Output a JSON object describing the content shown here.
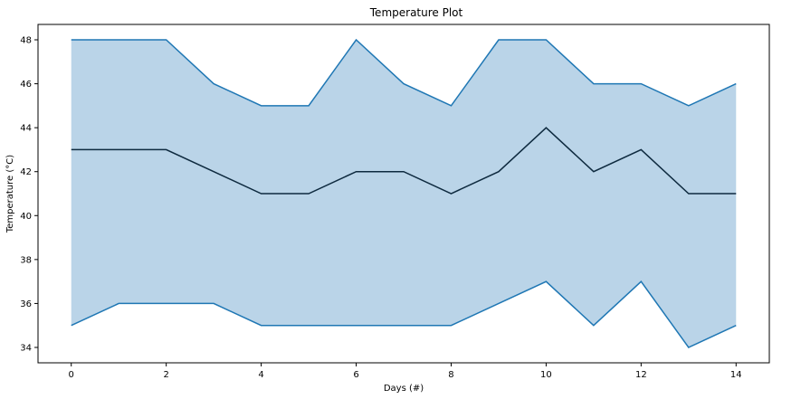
{
  "chart_data": {
    "type": "area",
    "title": "Temperature Plot",
    "xlabel": "Days (#)",
    "ylabel": "Temperature (°C)",
    "x": [
      0,
      1,
      2,
      3,
      4,
      5,
      6,
      7,
      8,
      9,
      10,
      11,
      12,
      13,
      14
    ],
    "series": [
      {
        "values": [
          48,
          48,
          48,
          46,
          45,
          45,
          48,
          46,
          45,
          48,
          48,
          46,
          46,
          45,
          46
        ]
      },
      {
        "values": [
          43,
          43,
          43,
          42,
          41,
          41,
          42,
          42,
          41,
          42,
          44,
          42,
          43,
          41,
          41
        ]
      },
      {
        "values": [
          35,
          36,
          36,
          36,
          35,
          35,
          35,
          35,
          35,
          36,
          37,
          35,
          37,
          34,
          35
        ]
      }
    ],
    "xlim": [
      -0.7,
      14.7
    ],
    "ylim": [
      33.3,
      48.7
    ],
    "xticks": [
      0,
      2,
      4,
      6,
      8,
      10,
      12,
      14
    ],
    "yticks": [
      34,
      36,
      38,
      40,
      42,
      44,
      46,
      48
    ],
    "grid": false,
    "colors": {
      "fill": "#bad4e8",
      "band_line": "#1f77b4",
      "mean_line": "#0e2a3f"
    }
  }
}
